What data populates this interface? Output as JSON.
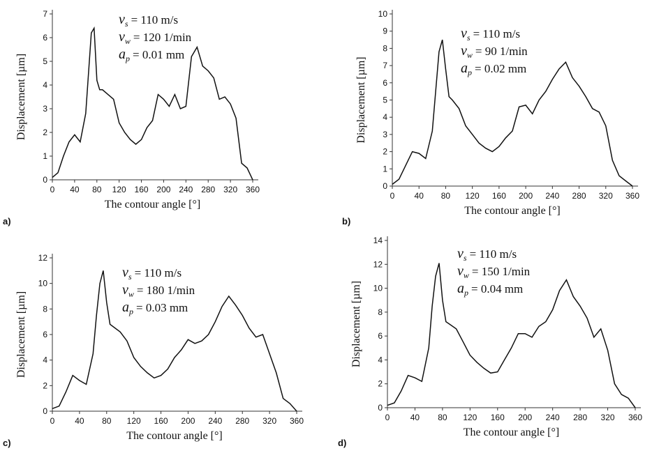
{
  "chart_data": [
    {
      "type": "line",
      "panel_label": "a)",
      "x_label": "The contour angle [°]",
      "y_label": "Displacement [µm]",
      "annotations": [
        {
          "symbol": "v",
          "subscript": "s",
          "text": "= 110 m/s"
        },
        {
          "symbol": "v",
          "subscript": "w",
          "text": "= 120 1/min"
        },
        {
          "symbol": "a",
          "subscript": "p",
          "text": "= 0.01 mm"
        }
      ],
      "xlim": [
        0,
        360
      ],
      "xticks": [
        0,
        40,
        80,
        120,
        160,
        200,
        240,
        280,
        320,
        360
      ],
      "ylim": [
        0,
        7
      ],
      "yticks": [
        0,
        1,
        2,
        3,
        4,
        5,
        6,
        7
      ],
      "color": "#111111",
      "x": [
        0,
        10,
        20,
        30,
        40,
        50,
        60,
        65,
        70,
        75,
        80,
        85,
        90,
        100,
        110,
        120,
        130,
        140,
        150,
        160,
        170,
        180,
        190,
        200,
        210,
        220,
        230,
        240,
        250,
        260,
        270,
        280,
        290,
        300,
        310,
        320,
        330,
        340,
        350,
        360
      ],
      "values": [
        0.1,
        0.3,
        1.0,
        1.6,
        1.9,
        1.6,
        2.8,
        4.5,
        6.2,
        6.4,
        4.2,
        3.8,
        3.8,
        3.6,
        3.4,
        2.4,
        2.0,
        1.7,
        1.5,
        1.7,
        2.2,
        2.5,
        3.6,
        3.4,
        3.1,
        3.6,
        3.0,
        3.1,
        5.2,
        5.6,
        4.8,
        4.6,
        4.3,
        3.4,
        3.5,
        3.2,
        2.6,
        0.7,
        0.5,
        0.0
      ]
    },
    {
      "type": "line",
      "panel_label": "b)",
      "x_label": "The contour angle [°]",
      "y_label": "Displacement [µm]",
      "annotations": [
        {
          "symbol": "v",
          "subscript": "s",
          "text": "= 110 m/s"
        },
        {
          "symbol": "v",
          "subscript": "w",
          "text": "= 90 1/min"
        },
        {
          "symbol": "a",
          "subscript": "p",
          "text": "= 0.02 mm"
        }
      ],
      "xlim": [
        0,
        360
      ],
      "xticks": [
        0,
        40,
        80,
        120,
        160,
        200,
        240,
        280,
        320,
        360
      ],
      "ylim": [
        0,
        10
      ],
      "yticks": [
        0,
        1,
        2,
        3,
        4,
        5,
        6,
        7,
        8,
        9,
        10
      ],
      "color": "#111111",
      "x": [
        0,
        10,
        20,
        30,
        40,
        50,
        60,
        65,
        70,
        75,
        80,
        85,
        90,
        100,
        110,
        120,
        130,
        140,
        150,
        160,
        170,
        180,
        190,
        200,
        210,
        220,
        230,
        240,
        250,
        260,
        270,
        280,
        290,
        300,
        310,
        320,
        330,
        340,
        350,
        360
      ],
      "values": [
        0.1,
        0.4,
        1.2,
        2.0,
        1.9,
        1.6,
        3.2,
        5.5,
        7.8,
        8.5,
        6.8,
        5.2,
        5.0,
        4.5,
        3.5,
        3.0,
        2.5,
        2.2,
        2.0,
        2.3,
        2.8,
        3.2,
        4.6,
        4.7,
        4.2,
        5.0,
        5.5,
        6.2,
        6.8,
        7.2,
        6.3,
        5.8,
        5.2,
        4.5,
        4.3,
        3.5,
        1.5,
        0.6,
        0.3,
        0.0
      ]
    },
    {
      "type": "line",
      "panel_label": "c)",
      "x_label": "The contour angle [°]",
      "y_label": "Displacement [µm]",
      "annotations": [
        {
          "symbol": "v",
          "subscript": "s",
          "text": "= 110 m/s"
        },
        {
          "symbol": "v",
          "subscript": "w",
          "text": "= 180 1/min"
        },
        {
          "symbol": "a",
          "subscript": "p",
          "text": "= 0.03 mm"
        }
      ],
      "xlim": [
        0,
        360
      ],
      "xticks": [
        0,
        40,
        80,
        120,
        160,
        200,
        240,
        280,
        320,
        360
      ],
      "ylim": [
        0,
        12
      ],
      "yticks": [
        0,
        2,
        4,
        6,
        8,
        10,
        12
      ],
      "color": "#111111",
      "x": [
        0,
        10,
        20,
        30,
        40,
        50,
        60,
        65,
        70,
        75,
        80,
        85,
        90,
        100,
        110,
        120,
        130,
        140,
        150,
        160,
        170,
        180,
        190,
        200,
        210,
        220,
        230,
        240,
        250,
        260,
        270,
        280,
        290,
        300,
        310,
        320,
        330,
        340,
        350,
        360
      ],
      "values": [
        0.2,
        0.4,
        1.5,
        2.8,
        2.4,
        2.1,
        4.5,
        7.5,
        10.0,
        11.0,
        8.5,
        6.8,
        6.6,
        6.2,
        5.5,
        4.2,
        3.5,
        3.0,
        2.6,
        2.8,
        3.3,
        4.2,
        4.8,
        5.6,
        5.3,
        5.5,
        6.0,
        7.0,
        8.2,
        9.0,
        8.3,
        7.5,
        6.5,
        5.8,
        6.0,
        4.5,
        3.0,
        1.0,
        0.6,
        0.0
      ]
    },
    {
      "type": "line",
      "panel_label": "d)",
      "x_label": "The contour angle [°]",
      "y_label": "Displacement [µm]",
      "annotations": [
        {
          "symbol": "v",
          "subscript": "s",
          "text": "= 110 m/s"
        },
        {
          "symbol": "v",
          "subscript": "w",
          "text": "= 150 1/min"
        },
        {
          "symbol": "a",
          "subscript": "p",
          "text": "= 0.04 mm"
        }
      ],
      "xlim": [
        0,
        360
      ],
      "xticks": [
        0,
        40,
        80,
        120,
        160,
        200,
        240,
        280,
        320,
        360
      ],
      "ylim": [
        0,
        14
      ],
      "yticks": [
        0,
        2,
        4,
        6,
        8,
        10,
        12,
        14
      ],
      "color": "#111111",
      "x": [
        0,
        10,
        20,
        30,
        40,
        50,
        60,
        65,
        70,
        75,
        80,
        85,
        90,
        100,
        110,
        120,
        130,
        140,
        150,
        160,
        170,
        180,
        190,
        200,
        210,
        220,
        230,
        240,
        250,
        260,
        270,
        280,
        290,
        300,
        310,
        320,
        330,
        340,
        350,
        360
      ],
      "values": [
        0.2,
        0.4,
        1.4,
        2.7,
        2.5,
        2.2,
        5.0,
        8.5,
        11.0,
        12.1,
        9.0,
        7.2,
        7.0,
        6.6,
        5.5,
        4.4,
        3.8,
        3.3,
        2.9,
        3.0,
        4.0,
        5.0,
        6.2,
        6.2,
        5.9,
        6.8,
        7.2,
        8.2,
        9.8,
        10.7,
        9.3,
        8.5,
        7.5,
        5.9,
        6.6,
        4.8,
        2.0,
        1.1,
        0.8,
        0.0
      ]
    }
  ]
}
